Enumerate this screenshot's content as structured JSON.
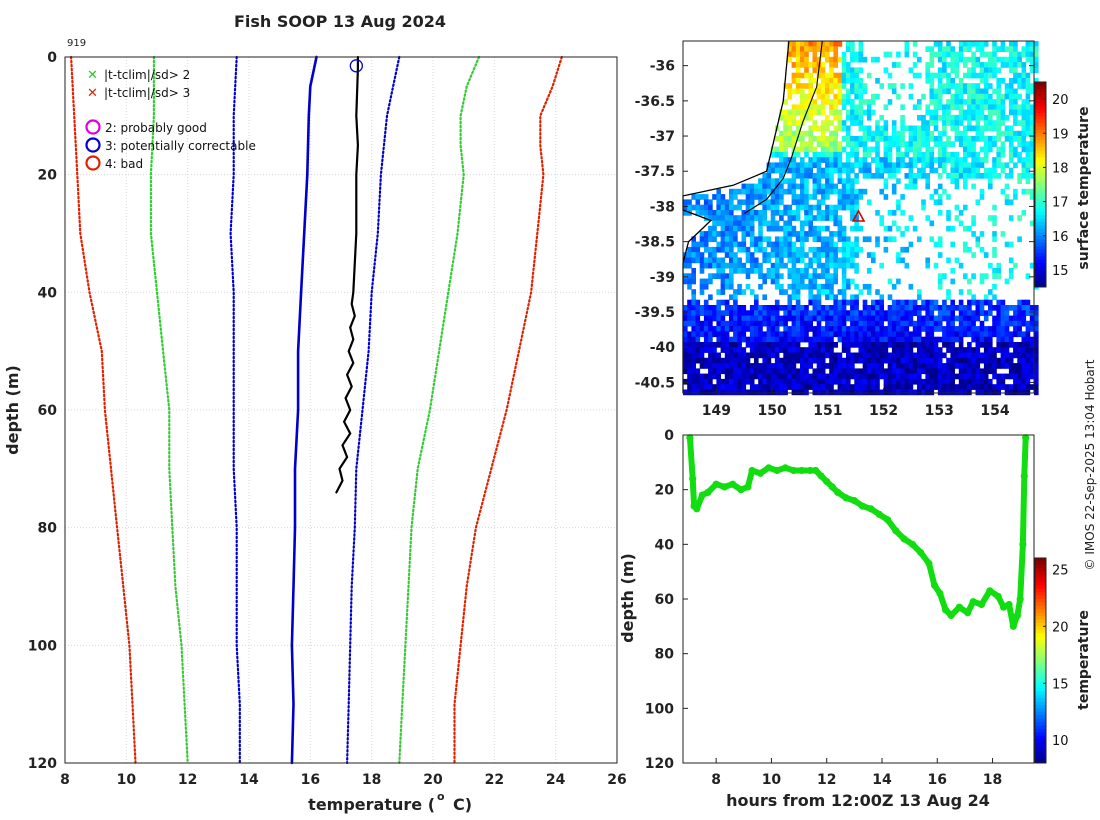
{
  "title": "Fish SOOP 13 Aug 2024",
  "cruise_id": "919",
  "copyright": "© IMOS 22-Sep-2025 13:04 Hobart",
  "legend": {
    "flag_x_green": "|t-tclim|/sd> 2",
    "flag_x_red": "|t-tclim|/sd> 3",
    "flag_good": "2: probably good",
    "flag_correctable": "3: potentially correctable",
    "flag_bad": "4: bad"
  },
  "colors": {
    "green": "#33cc33",
    "red": "#dd2200",
    "blue": "#0000cc",
    "magenta": "#dd00dd",
    "profile": "#000000",
    "trace": "#11dd11"
  },
  "chart_data": [
    {
      "type": "line",
      "name": "profile",
      "xlabel": "temperature (o C)",
      "ylabel": "depth (m)",
      "xlim": [
        8,
        26
      ],
      "ylim": [
        120,
        0
      ],
      "xticks": [
        8,
        10,
        12,
        14,
        16,
        18,
        20,
        22,
        24,
        26
      ],
      "yticks": [
        0,
        20,
        40,
        60,
        80,
        100,
        120
      ],
      "grid": true,
      "series": [
        {
          "name": "clim -3sd",
          "style": "red-dotted",
          "points": [
            [
              8.2,
              0
            ],
            [
              8.3,
              10
            ],
            [
              8.4,
              20
            ],
            [
              8.5,
              30
            ],
            [
              8.8,
              40
            ],
            [
              9.2,
              50
            ],
            [
              9.3,
              60
            ],
            [
              9.5,
              70
            ],
            [
              9.7,
              80
            ],
            [
              9.9,
              90
            ],
            [
              10.1,
              100
            ],
            [
              10.2,
              110
            ],
            [
              10.3,
              120
            ]
          ]
        },
        {
          "name": "clim -2sd",
          "style": "green-dotted",
          "points": [
            [
              10.9,
              0
            ],
            [
              10.9,
              10
            ],
            [
              10.8,
              20
            ],
            [
              10.8,
              30
            ],
            [
              11.0,
              40
            ],
            [
              11.2,
              50
            ],
            [
              11.4,
              60
            ],
            [
              11.4,
              70
            ],
            [
              11.5,
              80
            ],
            [
              11.6,
              90
            ],
            [
              11.8,
              100
            ],
            [
              11.9,
              110
            ],
            [
              12.0,
              120
            ]
          ]
        },
        {
          "name": "clim -1sd",
          "style": "blue-dotted",
          "points": [
            [
              13.6,
              0
            ],
            [
              13.5,
              10
            ],
            [
              13.5,
              20
            ],
            [
              13.4,
              30
            ],
            [
              13.5,
              40
            ],
            [
              13.5,
              50
            ],
            [
              13.5,
              60
            ],
            [
              13.5,
              70
            ],
            [
              13.6,
              80
            ],
            [
              13.6,
              90
            ],
            [
              13.6,
              100
            ],
            [
              13.7,
              110
            ],
            [
              13.7,
              120
            ]
          ]
        },
        {
          "name": "clim mean",
          "style": "blue-solid",
          "points": [
            [
              16.2,
              0
            ],
            [
              16.0,
              5
            ],
            [
              15.95,
              10
            ],
            [
              15.9,
              20
            ],
            [
              15.8,
              30
            ],
            [
              15.7,
              40
            ],
            [
              15.6,
              50
            ],
            [
              15.6,
              60
            ],
            [
              15.5,
              70
            ],
            [
              15.5,
              80
            ],
            [
              15.45,
              90
            ],
            [
              15.4,
              100
            ],
            [
              15.45,
              110
            ],
            [
              15.4,
              120
            ]
          ]
        },
        {
          "name": "clim +1sd",
          "style": "blue-dotted",
          "points": [
            [
              18.9,
              0
            ],
            [
              18.7,
              5
            ],
            [
              18.5,
              10
            ],
            [
              18.3,
              20
            ],
            [
              18.2,
              30
            ],
            [
              18.0,
              40
            ],
            [
              17.9,
              50
            ],
            [
              17.7,
              60
            ],
            [
              17.5,
              70
            ],
            [
              17.45,
              80
            ],
            [
              17.35,
              90
            ],
            [
              17.3,
              100
            ],
            [
              17.25,
              110
            ],
            [
              17.2,
              120
            ]
          ]
        },
        {
          "name": "clim +2sd",
          "style": "green-dotted",
          "points": [
            [
              21.5,
              0
            ],
            [
              21.1,
              5
            ],
            [
              20.9,
              10
            ],
            [
              20.9,
              15
            ],
            [
              21.0,
              20
            ],
            [
              20.8,
              30
            ],
            [
              20.5,
              40
            ],
            [
              20.2,
              50
            ],
            [
              19.9,
              60
            ],
            [
              19.5,
              70
            ],
            [
              19.3,
              80
            ],
            [
              19.2,
              90
            ],
            [
              19.1,
              100
            ],
            [
              19.0,
              110
            ],
            [
              18.9,
              120
            ]
          ]
        },
        {
          "name": "clim +3sd",
          "style": "red-dotted",
          "points": [
            [
              24.2,
              0
            ],
            [
              23.9,
              5
            ],
            [
              23.5,
              10
            ],
            [
              23.5,
              15
            ],
            [
              23.6,
              20
            ],
            [
              23.4,
              30
            ],
            [
              23.2,
              40
            ],
            [
              22.8,
              50
            ],
            [
              22.4,
              60
            ],
            [
              21.9,
              70
            ],
            [
              21.4,
              80
            ],
            [
              21.1,
              90
            ],
            [
              20.9,
              100
            ],
            [
              20.7,
              110
            ],
            [
              20.7,
              120
            ]
          ]
        },
        {
          "name": "observed profile",
          "style": "black-solid",
          "points": [
            [
              17.55,
              0
            ],
            [
              17.55,
              2
            ],
            [
              17.5,
              10
            ],
            [
              17.55,
              15
            ],
            [
              17.5,
              20
            ],
            [
              17.5,
              25
            ],
            [
              17.5,
              30
            ],
            [
              17.45,
              35
            ],
            [
              17.4,
              40
            ],
            [
              17.35,
              42
            ],
            [
              17.45,
              44
            ],
            [
              17.3,
              46
            ],
            [
              17.4,
              48
            ],
            [
              17.25,
              50
            ],
            [
              17.4,
              52
            ],
            [
              17.2,
              54
            ],
            [
              17.35,
              56
            ],
            [
              17.15,
              58
            ],
            [
              17.3,
              60
            ],
            [
              17.1,
              62
            ],
            [
              17.3,
              64
            ],
            [
              17.05,
              66
            ],
            [
              17.2,
              68
            ],
            [
              16.95,
              70
            ],
            [
              17.05,
              72
            ],
            [
              16.85,
              74
            ]
          ]
        }
      ],
      "markers": [
        {
          "name": "potentially correctable",
          "x": 17.5,
          "y": 1.5,
          "style": "blue-circle"
        }
      ]
    },
    {
      "type": "heatmap",
      "name": "sst-map",
      "xlim": [
        148.4,
        154.7
      ],
      "ylim": [
        -40.65,
        -35.65
      ],
      "xticks": [
        149,
        150,
        151,
        152,
        153,
        154
      ],
      "yticks": [
        -36,
        -36.5,
        -37,
        -37.5,
        -38,
        -38.5,
        -39,
        -39.5,
        -40,
        -40.5
      ],
      "colorbar_label": "surface temperature",
      "colorbar_range": [
        14.5,
        20.5
      ],
      "colorbar_ticks": [
        15,
        16,
        17,
        18,
        19,
        20
      ],
      "marker": {
        "lon": 151.55,
        "lat": -38.15,
        "style": "red-triangle"
      }
    },
    {
      "type": "line",
      "name": "depth-time",
      "xlabel": "hours from 12:00Z 13 Aug 24",
      "ylabel": "depth (m)",
      "xlim": [
        6.8,
        19.5
      ],
      "ylim": [
        120,
        0
      ],
      "xticks": [
        8,
        10,
        12,
        14,
        16,
        18
      ],
      "yticks": [
        0,
        20,
        40,
        60,
        80,
        100,
        120
      ],
      "colorbar_label": "temperature",
      "colorbar_range": [
        8,
        26
      ],
      "colorbar_ticks": [
        10,
        15,
        20,
        25
      ],
      "points": [
        [
          7.05,
          1
        ],
        [
          7.15,
          16
        ],
        [
          7.2,
          26
        ],
        [
          7.3,
          27
        ],
        [
          7.5,
          22
        ],
        [
          7.7,
          21
        ],
        [
          8.0,
          18
        ],
        [
          8.3,
          19
        ],
        [
          8.6,
          18
        ],
        [
          8.9,
          20
        ],
        [
          9.15,
          19
        ],
        [
          9.3,
          13
        ],
        [
          9.6,
          14
        ],
        [
          9.9,
          12
        ],
        [
          10.2,
          13
        ],
        [
          10.5,
          12
        ],
        [
          10.8,
          13
        ],
        [
          11.1,
          13
        ],
        [
          11.4,
          13
        ],
        [
          11.6,
          13
        ],
        [
          11.8,
          15
        ],
        [
          12.0,
          17
        ],
        [
          12.2,
          19
        ],
        [
          12.4,
          21
        ],
        [
          12.7,
          23
        ],
        [
          13.0,
          24
        ],
        [
          13.3,
          26
        ],
        [
          13.6,
          27
        ],
        [
          13.9,
          29
        ],
        [
          14.2,
          31
        ],
        [
          14.5,
          35
        ],
        [
          14.8,
          38
        ],
        [
          15.1,
          40
        ],
        [
          15.4,
          43
        ],
        [
          15.7,
          47
        ],
        [
          15.9,
          55
        ],
        [
          16.1,
          58
        ],
        [
          16.3,
          64
        ],
        [
          16.5,
          66
        ],
        [
          16.8,
          63
        ],
        [
          17.1,
          65
        ],
        [
          17.3,
          61
        ],
        [
          17.6,
          62
        ],
        [
          17.9,
          57
        ],
        [
          18.2,
          59
        ],
        [
          18.4,
          63
        ],
        [
          18.6,
          62
        ],
        [
          18.75,
          70
        ],
        [
          18.9,
          66
        ],
        [
          19.0,
          60
        ],
        [
          19.1,
          40
        ],
        [
          19.15,
          15
        ],
        [
          19.2,
          1
        ]
      ]
    }
  ]
}
